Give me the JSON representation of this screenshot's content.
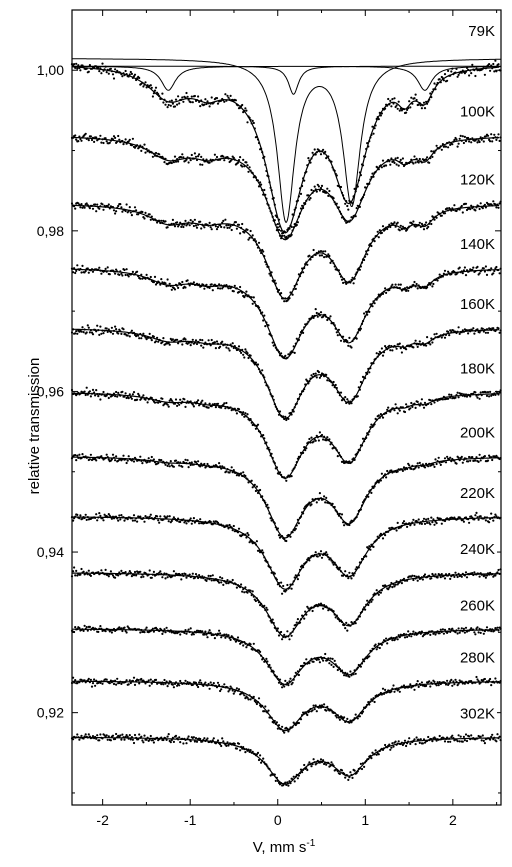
{
  "chart_data": {
    "type": "line",
    "xlabel": "V, mm s",
    "xlabel_superscript": "-1",
    "ylabel": "relative transmission",
    "xlim": [
      -2.35,
      2.55
    ],
    "ylim": [
      0.9085,
      1.0075
    ],
    "xticks": [
      -2,
      -1,
      0,
      1,
      2
    ],
    "xtick_labels": [
      "-2",
      "-1",
      "0",
      "1",
      "2"
    ],
    "yticks": [
      0.92,
      0.94,
      0.96,
      0.98,
      1.0
    ],
    "ytick_labels": [
      "0,92",
      "0,94",
      "0,96",
      "0,98",
      "1,00"
    ],
    "grid": false,
    "legend": "none",
    "series": [
      {
        "label": "79K",
        "baseline": 1.001,
        "sextet": 0.9,
        "doublet_depth": 0.0195
      },
      {
        "label": "100K",
        "baseline": 0.992,
        "sextet": 0.6,
        "doublet_depth": 0.012
      },
      {
        "label": "120K",
        "baseline": 0.9835,
        "sextet": 0.5,
        "doublet_depth": 0.011
      },
      {
        "label": "140K",
        "baseline": 0.9755,
        "sextet": 0.4,
        "doublet_depth": 0.0105
      },
      {
        "label": "160K",
        "baseline": 0.968,
        "sextet": 0.3,
        "doublet_depth": 0.0105
      },
      {
        "label": "180K",
        "baseline": 0.96,
        "sextet": 0.2,
        "doublet_depth": 0.01
      },
      {
        "label": "200K",
        "baseline": 0.952,
        "sextet": 0.1,
        "doublet_depth": 0.0095
      },
      {
        "label": "220K",
        "baseline": 0.9445,
        "sextet": 0.0,
        "doublet_depth": 0.0085
      },
      {
        "label": "240K",
        "baseline": 0.9375,
        "sextet": 0.0,
        "doublet_depth": 0.0075
      },
      {
        "label": "260K",
        "baseline": 0.9305,
        "sextet": 0.0,
        "doublet_depth": 0.0065
      },
      {
        "label": "280K",
        "baseline": 0.924,
        "sextet": 0.0,
        "doublet_depth": 0.0058
      },
      {
        "label": "302K",
        "baseline": 0.917,
        "sextet": 0.0,
        "doublet_depth": 0.0055
      }
    ],
    "doublet_line_positions": [
      0.08,
      0.82
    ],
    "sextet_line_positions": [
      -1.25,
      -0.8,
      1.45,
      1.68
    ],
    "subspectra_79K": [
      {
        "name": "doublet-component",
        "center": 0.47,
        "split": 0.75,
        "depth": 0.02
      },
      {
        "name": "singlet-component",
        "center": 0.18,
        "depth": 0.0035
      },
      {
        "name": "sextet-component",
        "lines": [
          -1.25,
          1.68
        ],
        "depth": 0.003
      }
    ]
  }
}
